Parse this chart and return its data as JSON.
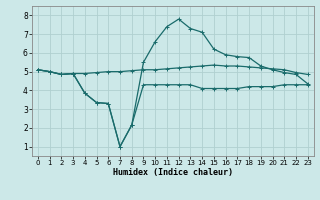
{
  "xlabel": "Humidex (Indice chaleur)",
  "bg_color": "#cce8e8",
  "grid_color": "#b0d0d0",
  "line_color": "#1a6b6b",
  "xlim": [
    -0.5,
    23.5
  ],
  "ylim": [
    0.5,
    8.5
  ],
  "xticks": [
    0,
    1,
    2,
    3,
    4,
    5,
    6,
    7,
    8,
    9,
    10,
    11,
    12,
    13,
    14,
    15,
    16,
    17,
    18,
    19,
    20,
    21,
    22,
    23
  ],
  "yticks": [
    1,
    2,
    3,
    4,
    5,
    6,
    7,
    8
  ],
  "line1_x": [
    0,
    1,
    2,
    3,
    4,
    5,
    6,
    7,
    8,
    9,
    10,
    11,
    12,
    13,
    14,
    15,
    16,
    17,
    18,
    19,
    20,
    21,
    22,
    23
  ],
  "line1_y": [
    5.1,
    5.0,
    4.85,
    4.9,
    4.9,
    4.95,
    5.0,
    5.0,
    5.05,
    5.1,
    5.1,
    5.15,
    5.2,
    5.25,
    5.3,
    5.35,
    5.3,
    5.3,
    5.25,
    5.2,
    5.15,
    5.1,
    4.95,
    4.85
  ],
  "line2_x": [
    0,
    1,
    2,
    3,
    4,
    5,
    6,
    7,
    8,
    9,
    10,
    11,
    12,
    13,
    14,
    15,
    16,
    17,
    18,
    19,
    20,
    21,
    22,
    23
  ],
  "line2_y": [
    5.1,
    5.0,
    4.85,
    4.9,
    3.85,
    3.35,
    3.3,
    1.0,
    2.15,
    4.3,
    4.3,
    4.3,
    4.3,
    4.3,
    4.1,
    4.1,
    4.1,
    4.1,
    4.2,
    4.2,
    4.2,
    4.3,
    4.3,
    4.3
  ],
  "line3_x": [
    0,
    1,
    2,
    3,
    4,
    5,
    6,
    7,
    8,
    9,
    10,
    11,
    12,
    13,
    14,
    15,
    16,
    17,
    18,
    19,
    20,
    21,
    22,
    23
  ],
  "line3_y": [
    5.1,
    5.0,
    4.85,
    4.9,
    3.85,
    3.35,
    3.3,
    1.0,
    2.15,
    5.5,
    6.6,
    7.4,
    7.8,
    7.3,
    7.1,
    6.2,
    5.9,
    5.8,
    5.75,
    5.3,
    5.1,
    4.95,
    4.85,
    4.35
  ]
}
